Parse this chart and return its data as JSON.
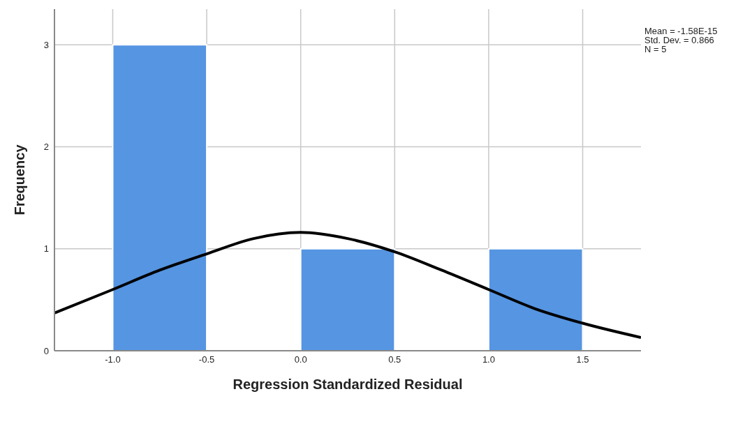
{
  "chart_data": {
    "type": "histogram",
    "xlabel": "Regression Standardized Residual",
    "ylabel": "Frequency",
    "bins": [
      -1.0,
      -0.5,
      0.0,
      0.5,
      1.0,
      1.5
    ],
    "values": [
      3,
      0,
      1,
      0,
      1
    ],
    "color": "#5595e2",
    "series": [
      {
        "type": "line",
        "color": "#000000",
        "x": [
          -1.31,
          -1.0,
          -0.75,
          -0.5,
          -0.25,
          0.0,
          0.25,
          0.5,
          0.75,
          1.0,
          1.25,
          1.5,
          1.81
        ],
        "values": [
          0.37,
          0.6,
          0.79,
          0.95,
          1.1,
          1.16,
          1.1,
          0.97,
          0.79,
          0.6,
          0.41,
          0.27,
          0.13
        ]
      }
    ],
    "xlim": [
      -1.31,
      1.81
    ],
    "ylim": [
      0,
      3.35
    ],
    "xticks": [
      {
        "value": -1.0,
        "label": "-1.0"
      },
      {
        "value": -0.5,
        "label": "-0.5"
      },
      {
        "value": 0.0,
        "label": "0.0"
      },
      {
        "value": 0.5,
        "label": "0.5"
      },
      {
        "value": 1.0,
        "label": "1.0"
      },
      {
        "value": 1.5,
        "label": "1.5"
      }
    ],
    "yticks": [
      0,
      1,
      2,
      3
    ],
    "grid": true,
    "marker": "none",
    "line_style": "solid",
    "annotations": [
      "Mean = -1.58E-15\nStd. Dev. = 0.866\nN = 5"
    ]
  }
}
